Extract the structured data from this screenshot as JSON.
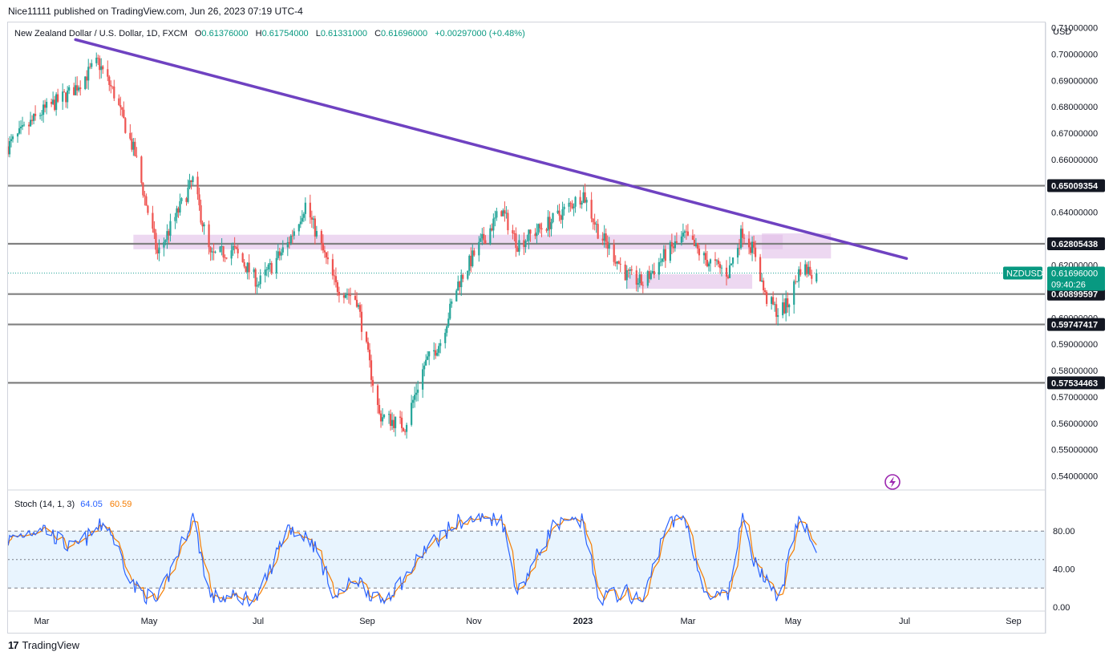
{
  "header": {
    "published": "Nice11111 published on TradingView.com, Jun 26, 2023 07:19 UTC-4"
  },
  "legend": {
    "symbol": "New Zealand Dollar / U.S. Dollar, 1D, FXCM",
    "open_label": "O",
    "open": "0.61376000",
    "high_label": "H",
    "high": "0.61754000",
    "low_label": "L",
    "low": "0.61331000",
    "close_label": "C",
    "close": "0.61696000",
    "change": "+0.00297000 (+0.48%)"
  },
  "currency": "USD",
  "stoch": {
    "label": "Stoch (14, 1, 3)",
    "k": "64.05",
    "d": "60.59",
    "ticks": [
      "80.00",
      "40.00",
      "0.00"
    ]
  },
  "footer": {
    "brand": "TradingView",
    "logo": "17"
  },
  "colors": {
    "up": "#26a69a",
    "down": "#ef5350",
    "trendline": "#6f42c1",
    "level_line": "#808080",
    "zone": "#e1bee7",
    "stoch_k": "#2962ff",
    "stoch_d": "#f57c00"
  },
  "icons": {
    "flash": "lightning-icon"
  },
  "chart_data": {
    "type": "candlestick",
    "ylim": [
      0.535,
      0.712
    ],
    "y_ticks": [
      "0.71000000",
      "0.70000000",
      "0.69000000",
      "0.68000000",
      "0.67000000",
      "0.66000000",
      "0.64000000",
      "0.62000000",
      "0.60000000",
      "0.59000000",
      "0.58000000",
      "0.57000000",
      "0.56000000",
      "0.55000000",
      "0.54000000"
    ],
    "x_ticks": [
      "Mar",
      "May",
      "Jul",
      "Sep",
      "Nov",
      "2023",
      "Mar",
      "May",
      "Jul",
      "Sep"
    ],
    "price_levels": [
      {
        "label": "0.65009354",
        "value": 0.65009354
      },
      {
        "label": "0.62805438",
        "value": 0.62805438
      },
      {
        "label": "0.60899597",
        "value": 0.60899597
      },
      {
        "label": "0.59747417",
        "value": 0.59747417
      },
      {
        "label": "0.57534463",
        "value": 0.57534463
      }
    ],
    "current_price": {
      "symbol": "NZDUSD",
      "value": "0.61696000",
      "countdown": "09:40:26",
      "price": 0.61696
    },
    "trendline": {
      "from": {
        "date": "2022-03-22",
        "price": 0.7055
      },
      "to": {
        "date": "2023-08-21",
        "price": 0.6225
      }
    },
    "zones": [
      {
        "from": "2022-04-27",
        "to": "2023-06-05",
        "high": 0.6315,
        "low": 0.626
      },
      {
        "from": "2023-05-23",
        "to": "2023-07-05",
        "high": 0.632,
        "low": 0.6225
      },
      {
        "from": "2023-02-28",
        "to": "2023-05-17",
        "high": 0.6165,
        "low": 0.611
      }
    ],
    "close_path": [
      [
        "2022-02-08",
        0.665
      ],
      [
        "2022-03-01",
        0.678
      ],
      [
        "2022-03-20",
        0.686
      ],
      [
        "2022-04-05",
        0.697
      ],
      [
        "2022-04-15",
        0.685
      ],
      [
        "2022-04-28",
        0.662
      ],
      [
        "2022-05-12",
        0.624
      ],
      [
        "2022-06-03",
        0.652
      ],
      [
        "2022-06-14",
        0.623
      ],
      [
        "2022-06-28",
        0.626
      ],
      [
        "2022-07-14",
        0.613
      ],
      [
        "2022-08-01",
        0.628
      ],
      [
        "2022-08-12",
        0.643
      ],
      [
        "2022-08-31",
        0.612
      ],
      [
        "2022-09-13",
        0.607
      ],
      [
        "2022-09-27",
        0.563
      ],
      [
        "2022-10-13",
        0.559
      ],
      [
        "2022-10-25",
        0.582
      ],
      [
        "2022-11-04",
        0.591
      ],
      [
        "2022-11-15",
        0.613
      ],
      [
        "2022-11-25",
        0.624
      ],
      [
        "2022-12-12",
        0.641
      ],
      [
        "2022-12-22",
        0.628
      ],
      [
        "2023-01-13",
        0.637
      ],
      [
        "2023-02-01",
        0.647
      ],
      [
        "2023-02-10",
        0.633
      ],
      [
        "2023-02-28",
        0.616
      ],
      [
        "2023-03-10",
        0.613
      ],
      [
        "2023-03-24",
        0.624
      ],
      [
        "2023-04-05",
        0.631
      ],
      [
        "2023-04-18",
        0.622
      ],
      [
        "2023-05-02",
        0.617
      ],
      [
        "2023-05-11",
        0.633
      ],
      [
        "2023-05-19",
        0.624
      ],
      [
        "2023-05-25",
        0.608
      ],
      [
        "2023-06-02",
        0.602
      ],
      [
        "2023-06-08",
        0.605
      ],
      [
        "2023-06-16",
        0.619
      ],
      [
        "2023-06-26",
        0.61696
      ]
    ],
    "stoch_path": [
      [
        "2022-02-08",
        70
      ],
      [
        "2022-03-01",
        85
      ],
      [
        "2022-03-20",
        60
      ],
      [
        "2022-04-10",
        90
      ],
      [
        "2022-04-28",
        20
      ],
      [
        "2022-05-12",
        5
      ],
      [
        "2022-06-03",
        95
      ],
      [
        "2022-06-14",
        10
      ],
      [
        "2022-07-14",
        10
      ],
      [
        "2022-08-01",
        85
      ],
      [
        "2022-08-16",
        70
      ],
      [
        "2022-08-31",
        10
      ],
      [
        "2022-09-13",
        30
      ],
      [
        "2022-09-27",
        5
      ],
      [
        "2022-10-13",
        30
      ],
      [
        "2022-10-25",
        60
      ],
      [
        "2022-11-15",
        90
      ],
      [
        "2022-12-12",
        95
      ],
      [
        "2022-12-22",
        15
      ],
      [
        "2023-01-13",
        85
      ],
      [
        "2023-02-01",
        90
      ],
      [
        "2023-02-10",
        10
      ],
      [
        "2023-02-28",
        15
      ],
      [
        "2023-03-10",
        5
      ],
      [
        "2023-03-24",
        85
      ],
      [
        "2023-04-05",
        95
      ],
      [
        "2023-04-18",
        10
      ],
      [
        "2023-05-02",
        10
      ],
      [
        "2023-05-11",
        98
      ],
      [
        "2023-05-19",
        45
      ],
      [
        "2023-06-02",
        5
      ],
      [
        "2023-06-16",
        98
      ],
      [
        "2023-06-26",
        64
      ]
    ]
  }
}
